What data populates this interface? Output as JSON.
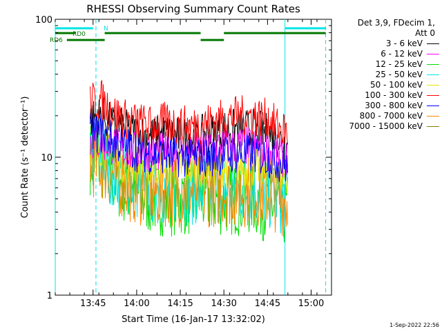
{
  "chart_data": {
    "type": "line",
    "title": "RHESSI Observing Summary Count Rates",
    "xlabel": "Start Time (16-Jan-17 13:32:02)",
    "ylabel": "Count Rate (s⁻¹ detector⁻¹)",
    "y_scale": "log",
    "ylim": [
      1,
      100
    ],
    "y_ticks": [
      "1",
      "10",
      "100"
    ],
    "x_range": [
      "13:32",
      "15:07"
    ],
    "x_ticks": [
      "13:45",
      "14:00",
      "14:15",
      "14:30",
      "14:45",
      "15:00"
    ],
    "legend_header": [
      "Det 3,9, FDecim 1,",
      "Att 0"
    ],
    "legend_placement": "right",
    "series": [
      {
        "name": "3 - 6 keV",
        "color": "#000000",
        "points": [
          [
            "13:44",
            19
          ],
          [
            "13:48",
            20
          ],
          [
            "13:52",
            17
          ],
          [
            "13:56",
            16
          ],
          [
            "14:00",
            15
          ],
          [
            "14:05",
            14
          ],
          [
            "14:10",
            15
          ],
          [
            "14:15",
            14
          ],
          [
            "14:20",
            14
          ],
          [
            "14:25",
            15
          ],
          [
            "14:30",
            16
          ],
          [
            "14:35",
            16
          ],
          [
            "14:40",
            16
          ],
          [
            "14:45",
            15
          ],
          [
            "14:48",
            14
          ],
          [
            "14:50",
            13
          ],
          [
            "14:52",
            12
          ]
        ]
      },
      {
        "name": "6 - 12 keV",
        "color": "#ff00ff",
        "points": [
          [
            "13:44",
            13
          ],
          [
            "13:48",
            13
          ],
          [
            "13:52",
            12
          ],
          [
            "13:56",
            11
          ],
          [
            "14:00",
            11
          ],
          [
            "14:05",
            11
          ],
          [
            "14:10",
            11
          ],
          [
            "14:15",
            11
          ],
          [
            "14:20",
            11
          ],
          [
            "14:25",
            11.5
          ],
          [
            "14:30",
            12
          ],
          [
            "14:35",
            12
          ],
          [
            "14:40",
            12
          ],
          [
            "14:45",
            11
          ],
          [
            "14:48",
            10.5
          ],
          [
            "14:50",
            10
          ],
          [
            "14:52",
            9.5
          ]
        ]
      },
      {
        "name": "12 - 25 keV",
        "color": "#00dd00",
        "points": [
          [
            "13:44",
            10
          ],
          [
            "13:48",
            9
          ],
          [
            "13:52",
            7
          ],
          [
            "13:56",
            6
          ],
          [
            "14:00",
            5.5
          ],
          [
            "14:05",
            5
          ],
          [
            "14:10",
            5
          ],
          [
            "14:15",
            5
          ],
          [
            "14:20",
            5
          ],
          [
            "14:25",
            5
          ],
          [
            "14:30",
            5
          ],
          [
            "14:35",
            5
          ],
          [
            "14:40",
            5
          ],
          [
            "14:45",
            4.5
          ],
          [
            "14:48",
            4.5
          ],
          [
            "14:50",
            4.2
          ],
          [
            "14:52",
            4
          ]
        ]
      },
      {
        "name": "25 - 50 keV",
        "color": "#00e5e5",
        "points": [
          [
            "13:44",
            10.5
          ],
          [
            "13:48",
            10
          ],
          [
            "13:52",
            8
          ],
          [
            "13:56",
            7
          ],
          [
            "14:00",
            6.5
          ],
          [
            "14:05",
            6
          ],
          [
            "14:10",
            6
          ],
          [
            "14:15",
            6
          ],
          [
            "14:20",
            6
          ],
          [
            "14:25",
            6
          ],
          [
            "14:30",
            6
          ],
          [
            "14:35",
            6
          ],
          [
            "14:40",
            6
          ],
          [
            "14:45",
            5.5
          ],
          [
            "14:48",
            5.5
          ],
          [
            "14:50",
            5
          ],
          [
            "14:52",
            5
          ]
        ]
      },
      {
        "name": "50 - 100 keV",
        "color": "#e5e500",
        "points": [
          [
            "13:44",
            12
          ],
          [
            "13:48",
            12
          ],
          [
            "13:52",
            10
          ],
          [
            "13:56",
            9
          ],
          [
            "14:00",
            9
          ],
          [
            "14:05",
            8.5
          ],
          [
            "14:10",
            8.5
          ],
          [
            "14:15",
            8.5
          ],
          [
            "14:20",
            8.5
          ],
          [
            "14:25",
            8.5
          ],
          [
            "14:30",
            8.5
          ],
          [
            "14:35",
            8.5
          ],
          [
            "14:40",
            8.5
          ],
          [
            "14:45",
            8
          ],
          [
            "14:48",
            8
          ],
          [
            "14:50",
            7.5
          ],
          [
            "14:52",
            7
          ]
        ]
      },
      {
        "name": "100 - 300 keV",
        "color": "#ff0000",
        "points": [
          [
            "13:44",
            25
          ],
          [
            "13:48",
            26
          ],
          [
            "13:52",
            21
          ],
          [
            "13:56",
            19
          ],
          [
            "14:00",
            18
          ],
          [
            "14:05",
            17
          ],
          [
            "14:10",
            18
          ],
          [
            "14:15",
            17
          ],
          [
            "14:20",
            17
          ],
          [
            "14:25",
            18
          ],
          [
            "14:30",
            19
          ],
          [
            "14:35",
            20
          ],
          [
            "14:40",
            20
          ],
          [
            "14:45",
            19
          ],
          [
            "14:48",
            17
          ],
          [
            "14:50",
            16
          ],
          [
            "14:52",
            15
          ]
        ]
      },
      {
        "name": "300 - 800 keV",
        "color": "#0000ff",
        "points": [
          [
            "13:44",
            15
          ],
          [
            "13:48",
            15
          ],
          [
            "13:52",
            13
          ],
          [
            "13:56",
            12
          ],
          [
            "14:00",
            11
          ],
          [
            "14:05",
            10.5
          ],
          [
            "14:10",
            10.5
          ],
          [
            "14:15",
            10
          ],
          [
            "14:20",
            10
          ],
          [
            "14:25",
            10
          ],
          [
            "14:30",
            10.5
          ],
          [
            "14:35",
            10.5
          ],
          [
            "14:40",
            10.5
          ],
          [
            "14:45",
            10
          ],
          [
            "14:48",
            9.5
          ],
          [
            "14:50",
            9
          ],
          [
            "14:52",
            8.5
          ]
        ]
      },
      {
        "name": "800 - 7000 keV",
        "color": "#ff8800",
        "points": [
          [
            "13:44",
            9.5
          ],
          [
            "13:48",
            9
          ],
          [
            "13:52",
            7.5
          ],
          [
            "13:56",
            6.5
          ],
          [
            "14:00",
            6
          ],
          [
            "14:05",
            5.8
          ],
          [
            "14:10",
            5.8
          ],
          [
            "14:15",
            5.8
          ],
          [
            "14:20",
            5.8
          ],
          [
            "14:25",
            5.8
          ],
          [
            "14:30",
            5.8
          ],
          [
            "14:35",
            5.8
          ],
          [
            "14:40",
            5.8
          ],
          [
            "14:45",
            5.5
          ],
          [
            "14:48",
            5.3
          ],
          [
            "14:50",
            5
          ],
          [
            "14:52",
            4.8
          ]
        ]
      },
      {
        "name": "7000 - 15000 keV",
        "color": "#808000",
        "points": []
      }
    ],
    "status_bars": [
      {
        "label": "N",
        "color": "#00e5e5",
        "segments": [
          [
            "13:32",
            "13:45"
          ],
          [
            "14:51",
            "15:05"
          ]
        ]
      },
      {
        "label": "RD0",
        "color": "#007700",
        "segments": [
          [
            "13:32",
            "13:39"
          ],
          [
            "13:49",
            "14:22"
          ],
          [
            "14:30",
            "15:05"
          ]
        ]
      },
      {
        "label": "RD6",
        "color": "#007700",
        "segments": [
          [
            "13:36",
            "13:49"
          ],
          [
            "14:22",
            "14:30"
          ]
        ]
      }
    ],
    "markers": [
      {
        "time": "13:32",
        "style": "solid",
        "color": "#00e5e5"
      },
      {
        "time": "13:46",
        "style": "dashed",
        "color": "#00e5e5"
      },
      {
        "time": "14:51",
        "style": "solid",
        "color": "#00e5e5"
      },
      {
        "time": "15:05",
        "style": "dashed",
        "color": "#00e5e5"
      }
    ]
  },
  "timestamp": "1-Sep-2022 22:56"
}
